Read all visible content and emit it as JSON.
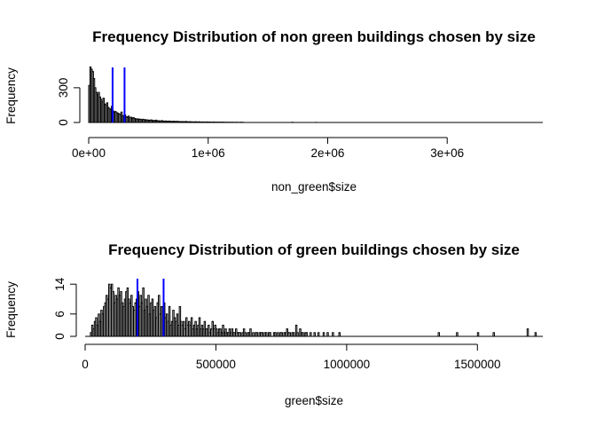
{
  "chart_data": [
    {
      "type": "histogram",
      "title": "Frequency Distribution of non green buildings chosen by size",
      "xlabel": "non_green$size",
      "ylabel": "Frequency",
      "xlim": [
        0,
        3800000
      ],
      "ylim": [
        0,
        460
      ],
      "x_ticks": [
        0,
        1000000,
        2000000,
        3000000
      ],
      "x_tick_labels": [
        "0e+00",
        "1e+06",
        "2e+06",
        "3e+06"
      ],
      "y_ticks": [
        0,
        300
      ],
      "y_tick_labels": [
        "0",
        "300"
      ],
      "bin_width": 10000,
      "counts": [
        320,
        480,
        460,
        440,
        380,
        300,
        260,
        240,
        260,
        220,
        200,
        180,
        210,
        160,
        150,
        170,
        130,
        120,
        110,
        140,
        100,
        90,
        95,
        85,
        80,
        75,
        70,
        90,
        60,
        55,
        65,
        50,
        45,
        55,
        40,
        45,
        38,
        42,
        35,
        30,
        32,
        28,
        30,
        26,
        24,
        28,
        22,
        25,
        20,
        22,
        18,
        20,
        22,
        16,
        18,
        15,
        20,
        14,
        15,
        12,
        14,
        16,
        12,
        10,
        13,
        11,
        10,
        12,
        9,
        10,
        8,
        11,
        8,
        9,
        10,
        7,
        8,
        6,
        8,
        7,
        6,
        9,
        6,
        5,
        7,
        5,
        6,
        4,
        5,
        6,
        5,
        4,
        6,
        3,
        4,
        5,
        3,
        4,
        3,
        5,
        3,
        4,
        3,
        2,
        4,
        3,
        2,
        3,
        2,
        3,
        2,
        2,
        3,
        2,
        1,
        2,
        2,
        1,
        2,
        1,
        2,
        1,
        1,
        2,
        1,
        1,
        1,
        2,
        1,
        1
      ],
      "extra_bars": [
        {
          "x": 1700000,
          "count": 2
        },
        {
          "x": 1900000,
          "count": 1
        }
      ],
      "vlines": [
        200000,
        300000
      ],
      "vline_color": "#0000ff"
    },
    {
      "type": "histogram",
      "title": "Frequency Distribution of green buildings chosen by size",
      "xlabel": "green$size",
      "ylabel": "Frequency",
      "xlim": [
        0,
        1750000
      ],
      "ylim": [
        0,
        15
      ],
      "x_ticks": [
        0,
        500000,
        1000000,
        1500000
      ],
      "x_tick_labels": [
        "0",
        "500000",
        "1000000",
        "1500000"
      ],
      "y_ticks": [
        0,
        6,
        14
      ],
      "y_tick_labels": [
        "0",
        "6",
        "14"
      ],
      "bin_width": 5000,
      "counts": [
        0,
        0,
        0,
        0,
        1,
        3,
        2,
        4,
        5,
        3,
        6,
        4,
        7,
        6,
        8,
        9,
        11,
        10,
        14,
        13,
        14,
        12,
        9,
        11,
        10,
        13,
        11,
        12,
        9,
        8,
        10,
        12,
        13,
        10,
        9,
        11,
        8,
        7,
        9,
        10,
        12,
        8,
        11,
        9,
        13,
        7,
        10,
        8,
        11,
        6,
        9,
        10,
        7,
        8,
        5,
        9,
        11,
        6,
        8,
        7,
        9,
        5,
        6,
        4,
        8,
        3,
        4,
        7,
        5,
        4,
        6,
        3,
        8,
        4,
        3,
        4,
        2,
        5,
        3,
        4,
        3,
        5,
        2,
        3,
        4,
        2,
        3,
        5,
        2,
        3,
        2,
        4,
        2,
        2,
        3,
        1,
        2,
        4,
        2,
        3,
        2,
        1,
        2,
        2,
        1,
        3,
        1,
        2,
        1,
        1,
        2,
        1,
        2,
        1,
        1,
        2,
        1,
        1,
        1,
        0,
        1,
        2,
        1,
        0,
        1,
        1,
        2,
        0,
        1,
        0,
        1,
        1,
        0,
        1,
        1,
        1,
        0,
        1,
        1,
        0,
        1,
        1,
        0,
        0,
        1,
        1,
        0,
        1,
        0,
        1,
        1,
        0,
        1,
        1,
        2,
        1,
        1,
        0,
        1,
        1,
        0,
        3,
        1,
        0,
        2,
        1,
        1,
        0,
        1,
        1,
        0,
        0,
        1,
        0,
        0,
        1,
        0,
        0,
        1,
        0,
        0,
        0,
        1,
        0,
        0,
        1,
        0,
        0,
        0,
        1,
        0,
        0,
        0,
        0,
        1
      ],
      "extra_bars": [
        {
          "x": 1350000,
          "count": 1
        },
        {
          "x": 1420000,
          "count": 1
        },
        {
          "x": 1500000,
          "count": 1
        },
        {
          "x": 1560000,
          "count": 1
        },
        {
          "x": 1690000,
          "count": 2
        },
        {
          "x": 1720000,
          "count": 1
        }
      ],
      "vlines": [
        200000,
        300000
      ],
      "vline_color": "#0000ff"
    }
  ]
}
